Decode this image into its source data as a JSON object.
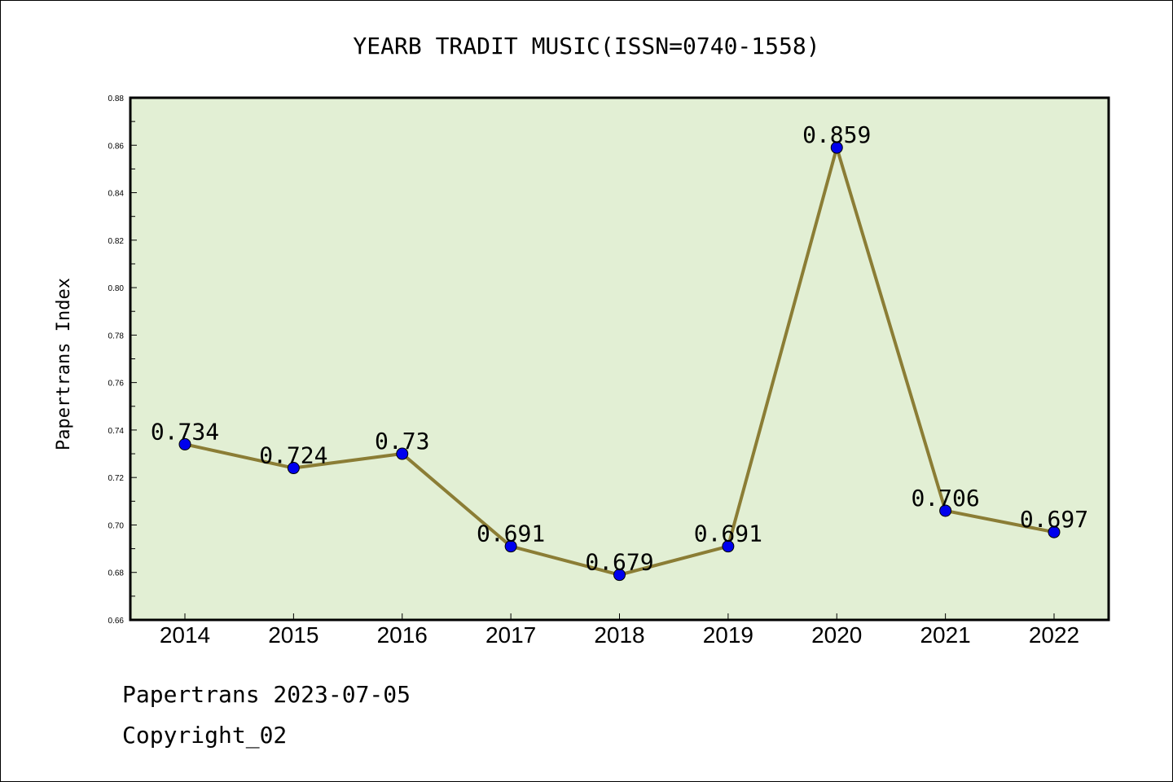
{
  "chart_data": {
    "type": "line",
    "title": "YEARB TRADIT MUSIC(ISSN=0740-1558)",
    "ylabel": "Papertrans Index",
    "xlabel": "",
    "categories": [
      "2014",
      "2015",
      "2016",
      "2017",
      "2018",
      "2019",
      "2020",
      "2021",
      "2022"
    ],
    "values": [
      0.734,
      0.724,
      0.73,
      0.691,
      0.679,
      0.691,
      0.859,
      0.706,
      0.697
    ],
    "data_labels": [
      "0.734",
      "0.724",
      "0.73",
      "0.691",
      "0.679",
      "0.691",
      "0.859",
      "0.706",
      "0.697"
    ],
    "ylim": [
      0.66,
      0.88
    ],
    "yticks": [
      "0.66",
      "0.68",
      "0.70",
      "0.72",
      "0.74",
      "0.76",
      "0.78",
      "0.80",
      "0.82",
      "0.84",
      "0.86",
      "0.88"
    ],
    "grid": false,
    "colors": {
      "plot_background": "#e2efd4",
      "line": "#8b7d35",
      "marker": "#0000ee"
    }
  },
  "footer": {
    "source": "Papertrans 2023-07-05",
    "copyright": "Copyright_02"
  }
}
